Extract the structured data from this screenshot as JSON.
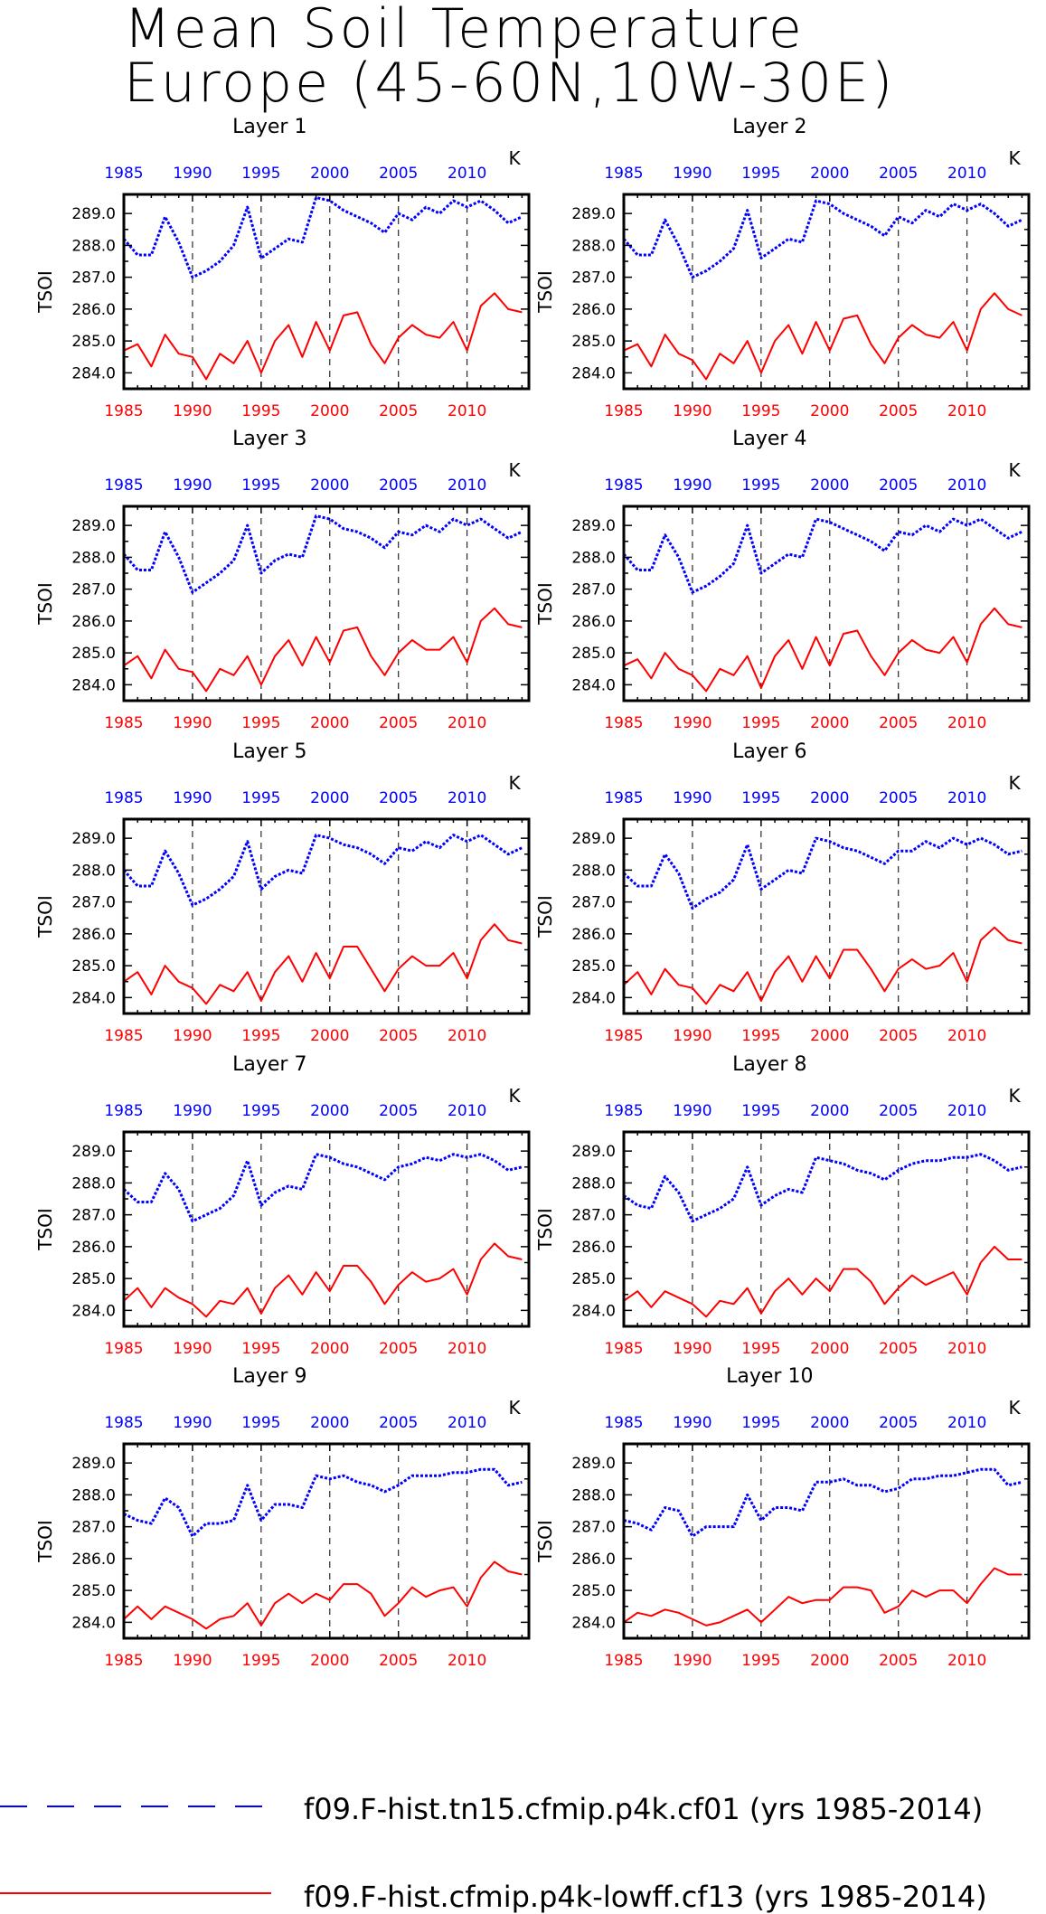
{
  "title": {
    "line1": "Mean Soil Temperature",
    "line2": "Europe (45-60N,10W-30E)"
  },
  "colors": {
    "series_blue": "#0000ff",
    "series_red": "#ff0000",
    "axis": "#000000"
  },
  "chart_data": {
    "type": "line",
    "units_label": "K",
    "ylabel": "TSOI",
    "x": [
      1985,
      1986,
      1987,
      1988,
      1989,
      1990,
      1991,
      1992,
      1993,
      1994,
      1995,
      1996,
      1997,
      1998,
      1999,
      2000,
      2001,
      2002,
      2003,
      2004,
      2005,
      2006,
      2007,
      2008,
      2009,
      2010,
      2011,
      2012,
      2013,
      2014
    ],
    "xlim": [
      1985,
      2014.5
    ],
    "xticks": [
      "1985",
      "1990",
      "1995",
      "2000",
      "2005",
      "2010"
    ],
    "ylim": [
      283.5,
      289.6
    ],
    "yticks": [
      "284.0",
      "285.0",
      "286.0",
      "287.0",
      "288.0",
      "289.0"
    ],
    "vertical_dashed_lines_at": [
      1990,
      1995,
      2000,
      2005,
      2010
    ],
    "legend": [
      {
        "name": "f09.F-hist.tn15.cfmip.p4k.cf01 (yrs 1985-2014)",
        "color": "#0000ff",
        "style": "dashed"
      },
      {
        "name": "f09.F-hist.cfmip.p4k-lowff.cf13 (yrs 1985-2014)",
        "color": "#ff0000",
        "style": "solid"
      }
    ],
    "panels": [
      {
        "label": "Layer 1",
        "series": [
          {
            "values": [
              288.2,
              287.7,
              287.7,
              288.9,
              288.1,
              287.0,
              287.2,
              287.5,
              288.0,
              289.2,
              287.6,
              287.9,
              288.2,
              288.1,
              289.5,
              289.4,
              289.1,
              288.9,
              288.7,
              288.4,
              289.0,
              288.8,
              289.2,
              289.0,
              289.4,
              289.2,
              289.4,
              289.1,
              288.7,
              288.9
            ]
          },
          {
            "values": [
              284.7,
              284.9,
              284.2,
              285.2,
              284.6,
              284.5,
              283.8,
              284.6,
              284.3,
              285.0,
              284.0,
              285.0,
              285.5,
              284.5,
              285.6,
              284.7,
              285.8,
              285.9,
              284.9,
              284.3,
              285.1,
              285.5,
              285.2,
              285.1,
              285.6,
              284.7,
              286.1,
              286.5,
              286.0,
              285.9
            ]
          }
        ]
      },
      {
        "label": "Layer 2",
        "series": [
          {
            "values": [
              288.2,
              287.7,
              287.7,
              288.8,
              288.0,
              287.0,
              287.2,
              287.5,
              287.9,
              289.1,
              287.6,
              287.9,
              288.2,
              288.1,
              289.4,
              289.3,
              289.0,
              288.8,
              288.6,
              288.3,
              288.9,
              288.7,
              289.1,
              288.9,
              289.3,
              289.1,
              289.3,
              289.0,
              288.6,
              288.8
            ]
          },
          {
            "values": [
              284.7,
              284.9,
              284.2,
              285.2,
              284.6,
              284.4,
              283.8,
              284.6,
              284.3,
              285.0,
              284.0,
              285.0,
              285.5,
              284.6,
              285.6,
              284.7,
              285.7,
              285.8,
              284.9,
              284.3,
              285.1,
              285.5,
              285.2,
              285.1,
              285.6,
              284.7,
              286.0,
              286.5,
              286.0,
              285.8
            ]
          }
        ]
      },
      {
        "label": "Layer 3",
        "series": [
          {
            "values": [
              288.1,
              287.6,
              287.6,
              288.8,
              288.0,
              286.9,
              287.2,
              287.5,
              287.9,
              289.0,
              287.5,
              287.9,
              288.1,
              288.0,
              289.3,
              289.2,
              288.9,
              288.8,
              288.6,
              288.3,
              288.8,
              288.7,
              289.0,
              288.8,
              289.2,
              289.0,
              289.2,
              288.9,
              288.6,
              288.8
            ]
          },
          {
            "values": [
              284.6,
              284.9,
              284.2,
              285.1,
              284.5,
              284.4,
              283.8,
              284.5,
              284.3,
              284.9,
              284.0,
              284.9,
              285.4,
              284.6,
              285.5,
              284.7,
              285.7,
              285.8,
              284.9,
              284.3,
              285.0,
              285.4,
              285.1,
              285.1,
              285.5,
              284.7,
              286.0,
              286.4,
              285.9,
              285.8
            ]
          }
        ]
      },
      {
        "label": "Layer 4",
        "series": [
          {
            "values": [
              288.1,
              287.6,
              287.6,
              288.7,
              288.0,
              286.9,
              287.1,
              287.4,
              287.8,
              289.0,
              287.5,
              287.8,
              288.1,
              288.0,
              289.2,
              289.1,
              288.9,
              288.7,
              288.5,
              288.2,
              288.8,
              288.7,
              289.0,
              288.8,
              289.2,
              289.0,
              289.2,
              288.9,
              288.6,
              288.8
            ]
          },
          {
            "values": [
              284.6,
              284.8,
              284.2,
              285.0,
              284.5,
              284.3,
              283.8,
              284.5,
              284.3,
              284.9,
              283.9,
              284.9,
              285.4,
              284.5,
              285.5,
              284.6,
              285.6,
              285.7,
              284.9,
              284.3,
              285.0,
              285.4,
              285.1,
              285.0,
              285.5,
              284.7,
              285.9,
              286.4,
              285.9,
              285.8
            ]
          }
        ]
      },
      {
        "label": "Layer 5",
        "series": [
          {
            "values": [
              288.0,
              287.5,
              287.5,
              288.6,
              287.9,
              286.9,
              287.1,
              287.4,
              287.8,
              288.9,
              287.4,
              287.8,
              288.0,
              287.9,
              289.1,
              289.0,
              288.8,
              288.7,
              288.5,
              288.2,
              288.7,
              288.6,
              288.9,
              288.7,
              289.1,
              288.9,
              289.1,
              288.8,
              288.5,
              288.7
            ]
          },
          {
            "values": [
              284.5,
              284.8,
              284.1,
              285.0,
              284.5,
              284.3,
              283.8,
              284.4,
              284.2,
              284.8,
              283.9,
              284.8,
              285.3,
              284.5,
              285.4,
              284.6,
              285.6,
              285.6,
              284.9,
              284.2,
              284.9,
              285.3,
              285.0,
              285.0,
              285.4,
              284.6,
              285.8,
              286.3,
              285.8,
              285.7
            ]
          }
        ]
      },
      {
        "label": "Layer 6",
        "series": [
          {
            "values": [
              287.9,
              287.5,
              287.5,
              288.5,
              287.9,
              286.8,
              287.1,
              287.3,
              287.7,
              288.8,
              287.4,
              287.7,
              288.0,
              287.9,
              289.0,
              288.9,
              288.7,
              288.6,
              288.4,
              288.2,
              288.6,
              288.6,
              288.9,
              288.7,
              289.0,
              288.8,
              289.0,
              288.8,
              288.5,
              288.6
            ]
          },
          {
            "values": [
              284.4,
              284.8,
              284.1,
              284.9,
              284.4,
              284.3,
              283.8,
              284.4,
              284.2,
              284.8,
              283.9,
              284.8,
              285.3,
              284.5,
              285.3,
              284.6,
              285.5,
              285.5,
              284.9,
              284.2,
              284.9,
              285.2,
              284.9,
              285.0,
              285.4,
              284.5,
              285.8,
              286.2,
              285.8,
              285.7
            ]
          }
        ]
      },
      {
        "label": "Layer 7",
        "series": [
          {
            "values": [
              287.8,
              287.4,
              287.4,
              288.3,
              287.8,
              286.8,
              287.0,
              287.2,
              287.6,
              288.7,
              287.3,
              287.7,
              287.9,
              287.8,
              288.9,
              288.8,
              288.6,
              288.5,
              288.3,
              288.1,
              288.5,
              288.6,
              288.8,
              288.7,
              288.9,
              288.8,
              288.9,
              288.7,
              288.4,
              288.5
            ]
          },
          {
            "values": [
              284.3,
              284.7,
              284.1,
              284.7,
              284.4,
              284.2,
              283.8,
              284.3,
              284.2,
              284.7,
              283.9,
              284.7,
              285.1,
              284.5,
              285.2,
              284.6,
              285.4,
              285.4,
              284.9,
              284.2,
              284.8,
              285.2,
              284.9,
              285.0,
              285.3,
              284.5,
              285.6,
              286.1,
              285.7,
              285.6
            ]
          }
        ]
      },
      {
        "label": "Layer 8",
        "series": [
          {
            "values": [
              287.6,
              287.3,
              287.2,
              288.2,
              287.7,
              286.8,
              287.0,
              287.2,
              287.5,
              288.5,
              287.3,
              287.6,
              287.8,
              287.7,
              288.8,
              288.7,
              288.6,
              288.4,
              288.3,
              288.1,
              288.4,
              288.6,
              288.7,
              288.7,
              288.8,
              288.8,
              288.9,
              288.7,
              288.4,
              288.5
            ]
          },
          {
            "values": [
              284.3,
              284.6,
              284.1,
              284.6,
              284.4,
              284.2,
              283.8,
              284.3,
              284.2,
              284.7,
              283.9,
              284.6,
              285.0,
              284.5,
              285.0,
              284.6,
              285.3,
              285.3,
              284.9,
              284.2,
              284.7,
              285.1,
              284.8,
              285.0,
              285.2,
              284.5,
              285.5,
              286.0,
              285.6,
              285.6
            ]
          }
        ]
      },
      {
        "label": "Layer 9",
        "series": [
          {
            "values": [
              287.4,
              287.2,
              287.1,
              287.9,
              287.6,
              286.7,
              287.1,
              287.1,
              287.2,
              288.3,
              287.2,
              287.7,
              287.7,
              287.6,
              288.6,
              288.5,
              288.6,
              288.4,
              288.3,
              288.1,
              288.3,
              288.6,
              288.6,
              288.6,
              288.7,
              288.7,
              288.8,
              288.8,
              288.3,
              288.4
            ]
          },
          {
            "values": [
              284.1,
              284.5,
              284.1,
              284.5,
              284.3,
              284.1,
              283.8,
              284.1,
              284.2,
              284.6,
              283.9,
              284.6,
              284.9,
              284.6,
              284.9,
              284.7,
              285.2,
              285.2,
              284.9,
              284.2,
              284.6,
              285.1,
              284.8,
              285.0,
              285.1,
              284.5,
              285.4,
              285.9,
              285.6,
              285.5
            ]
          }
        ]
      },
      {
        "label": "Layer 10",
        "series": [
          {
            "values": [
              287.2,
              287.1,
              286.9,
              287.6,
              287.5,
              286.7,
              287.0,
              287.0,
              287.0,
              288.0,
              287.2,
              287.6,
              287.6,
              287.5,
              288.4,
              288.4,
              288.5,
              288.3,
              288.3,
              288.1,
              288.2,
              288.5,
              288.5,
              288.6,
              288.6,
              288.7,
              288.8,
              288.8,
              288.3,
              288.4
            ]
          },
          {
            "values": [
              284.0,
              284.3,
              284.2,
              284.4,
              284.3,
              284.1,
              283.9,
              284.0,
              284.2,
              284.4,
              284.0,
              284.4,
              284.8,
              284.6,
              284.7,
              284.7,
              285.1,
              285.1,
              285.0,
              284.3,
              284.5,
              285.0,
              284.8,
              285.0,
              285.0,
              284.6,
              285.2,
              285.7,
              285.5,
              285.5
            ]
          }
        ]
      }
    ]
  }
}
